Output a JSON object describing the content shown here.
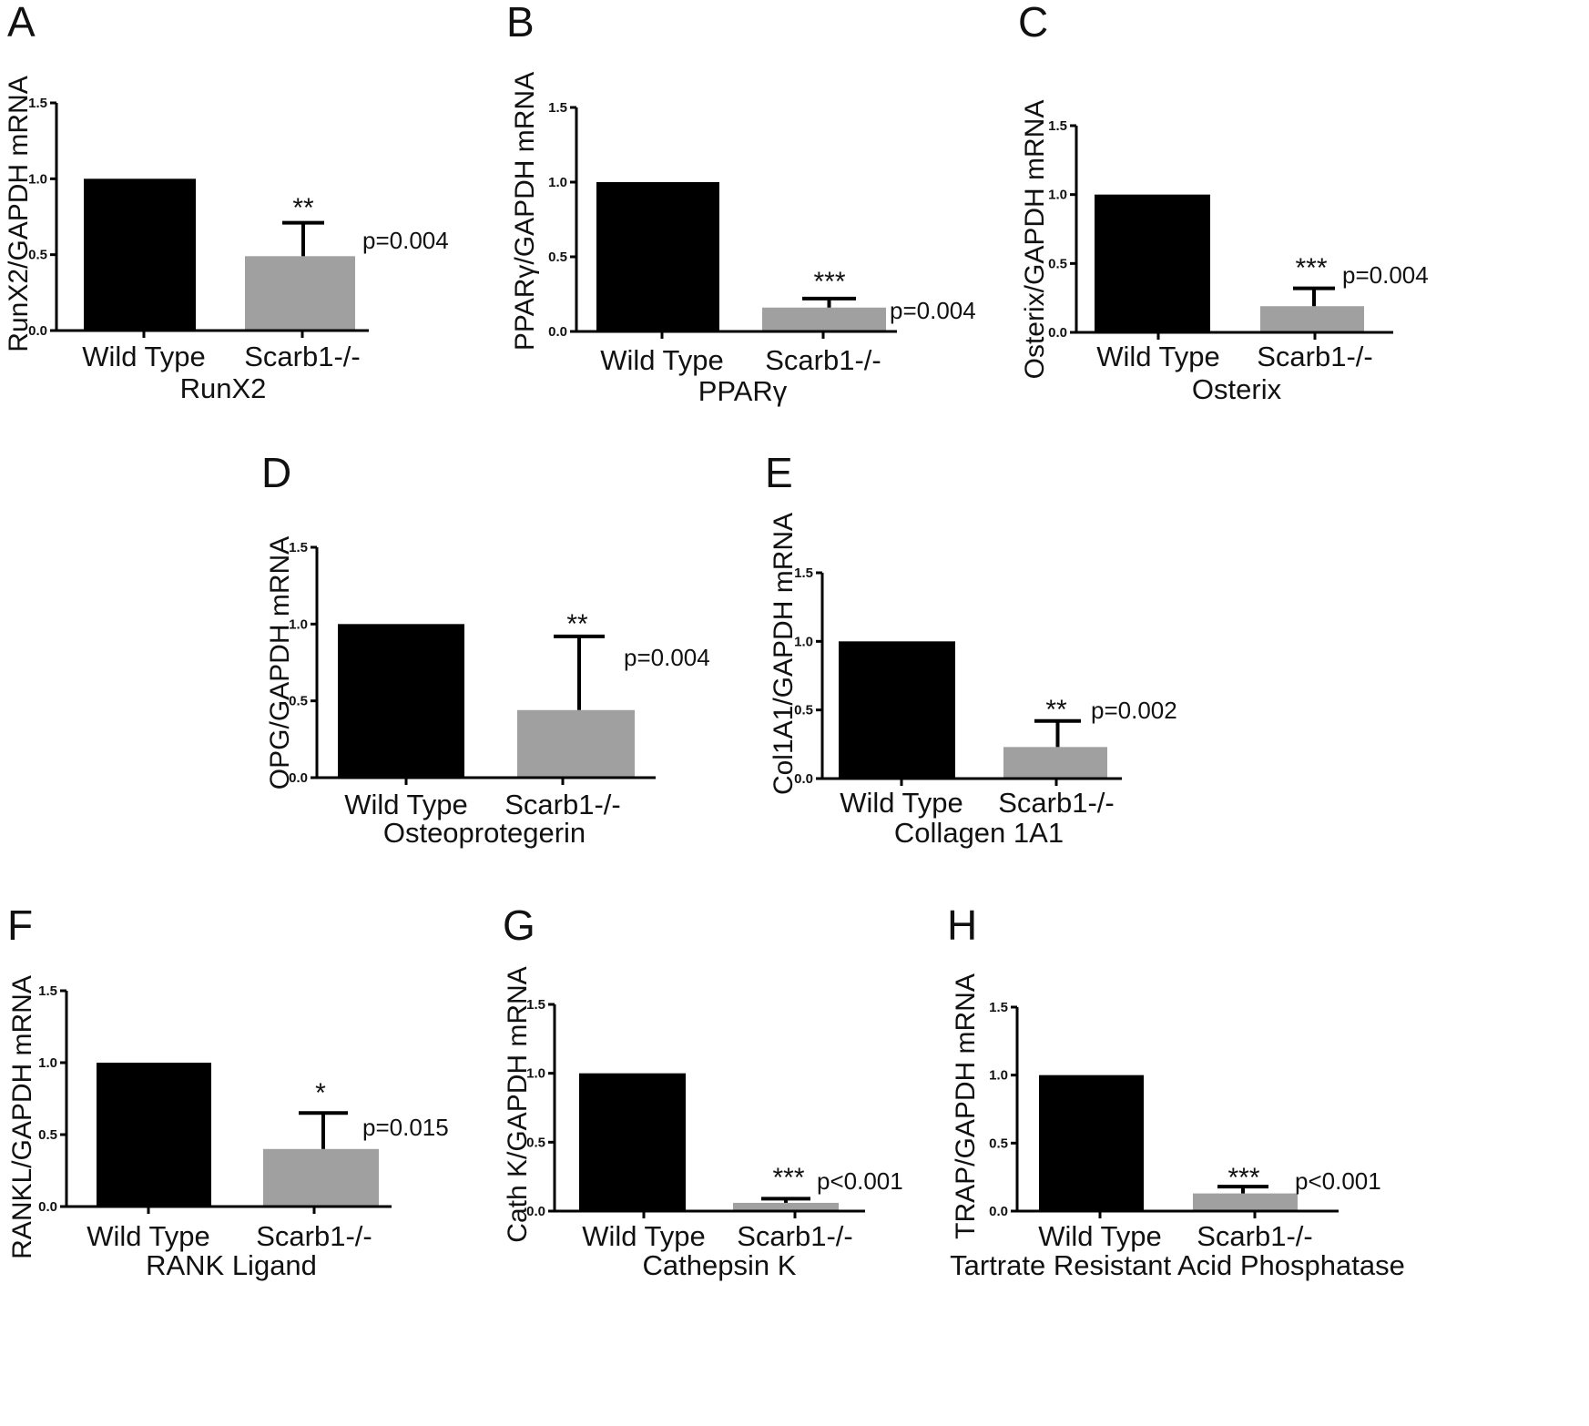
{
  "figure": {
    "colors": {
      "wild_type": "#000000",
      "knockout": "#a0a0a0",
      "axis": "#000000",
      "text": "#111111"
    }
  },
  "chart_data": [
    {
      "panel": "A",
      "type": "bar",
      "ylabel": "RunX2/GAPDH mRNA",
      "xlabel": "RunX2",
      "categories": [
        "Wild Type",
        "Scarb1-/-"
      ],
      "values": [
        1.0,
        0.49
      ],
      "error_upper": [
        null,
        0.71
      ],
      "significance": "**",
      "p_value": "p=0.004",
      "ylim": [
        0,
        1.5
      ],
      "yticks": [
        "0.0",
        "0.5",
        "1.0",
        "1.5"
      ]
    },
    {
      "panel": "B",
      "type": "bar",
      "ylabel": "PPARγ/GAPDH mRNA",
      "xlabel": "PPARγ",
      "categories": [
        "Wild Type",
        "Scarb1-/-"
      ],
      "values": [
        1.0,
        0.16
      ],
      "error_upper": [
        null,
        0.22
      ],
      "significance": "***",
      "p_value": "p=0.004",
      "ylim": [
        0,
        1.5
      ],
      "yticks": [
        "0.0",
        "0.5",
        "1.0",
        "1.5"
      ]
    },
    {
      "panel": "C",
      "type": "bar",
      "ylabel": "Osterix/GAPDH mRNA",
      "xlabel": "Osterix",
      "categories": [
        "Wild Type",
        "Scarb1-/-"
      ],
      "values": [
        1.0,
        0.19
      ],
      "error_upper": [
        null,
        0.32
      ],
      "significance": "***",
      "p_value": "p=0.004",
      "ylim": [
        0,
        1.5
      ],
      "yticks": [
        "0.0",
        "0.5",
        "1.0",
        "1.5"
      ]
    },
    {
      "panel": "D",
      "type": "bar",
      "ylabel": "OPG/GAPDH mRNA",
      "xlabel": "Osteoprotegerin",
      "categories": [
        "Wild Type",
        "Scarb1-/-"
      ],
      "values": [
        1.0,
        0.44
      ],
      "error_upper": [
        null,
        0.92
      ],
      "significance": "**",
      "p_value": "p=0.004",
      "ylim": [
        0,
        1.5
      ],
      "yticks": [
        "0.0",
        "0.5",
        "1.0",
        "1.5"
      ]
    },
    {
      "panel": "E",
      "type": "bar",
      "ylabel": "Col1A1/GAPDH mRNA",
      "xlabel": "Collagen 1A1",
      "categories": [
        "Wild Type",
        "Scarb1-/-"
      ],
      "values": [
        1.0,
        0.23
      ],
      "error_upper": [
        null,
        0.42
      ],
      "significance": "**",
      "p_value": "p=0.002",
      "ylim": [
        0,
        1.5
      ],
      "yticks": [
        "0.0",
        "0.5",
        "1.0",
        "1.5"
      ]
    },
    {
      "panel": "F",
      "type": "bar",
      "ylabel": "RANKL/GAPDH mRNA",
      "xlabel": "RANK Ligand",
      "categories": [
        "Wild Type",
        "Scarb1-/-"
      ],
      "values": [
        1.0,
        0.4
      ],
      "error_upper": [
        null,
        0.65
      ],
      "significance": "*",
      "p_value": "p=0.015",
      "ylim": [
        0,
        1.5
      ],
      "yticks": [
        "0.0",
        "0.5",
        "1.0",
        "1.5"
      ]
    },
    {
      "panel": "G",
      "type": "bar",
      "ylabel": "Cath K/GAPDH mRNA",
      "xlabel": "Cathepsin K",
      "categories": [
        "Wild Type",
        "Scarb1-/-"
      ],
      "values": [
        1.0,
        0.06
      ],
      "error_upper": [
        null,
        0.09
      ],
      "significance": "***",
      "p_value": "p<0.001",
      "ylim": [
        0,
        1.5
      ],
      "yticks": [
        "0.0",
        "0.5",
        "1.0",
        "1.5"
      ]
    },
    {
      "panel": "H",
      "type": "bar",
      "ylabel": "TRAP/GAPDH mRNA",
      "xlabel": "Tartrate Resistant Acid Phosphatase",
      "categories": [
        "Wild Type",
        "Scarb1-/-"
      ],
      "values": [
        1.0,
        0.13
      ],
      "error_upper": [
        null,
        0.18
      ],
      "significance": "***",
      "p_value": "p<0.001",
      "ylim": [
        0,
        1.5
      ],
      "yticks": [
        "0.0",
        "0.5",
        "1.0",
        "1.5"
      ]
    }
  ]
}
